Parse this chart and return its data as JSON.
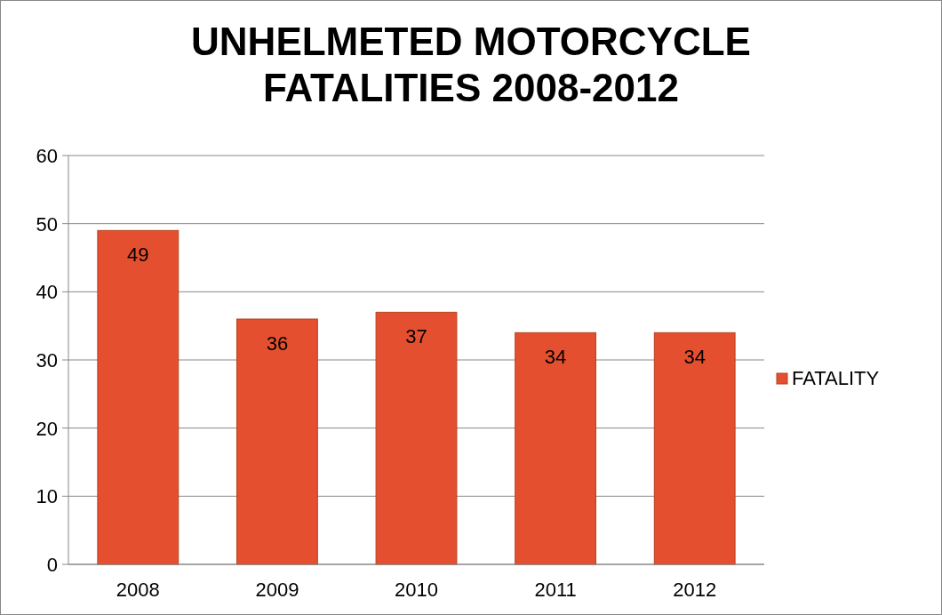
{
  "chart_data": {
    "type": "bar",
    "title": "UNHELMETED MOTORCYCLE FATALITIES 2008-2012",
    "categories": [
      "2008",
      "2009",
      "2010",
      "2011",
      "2012"
    ],
    "series": [
      {
        "name": "FATALITY",
        "color": "#e4502f",
        "values": [
          49,
          36,
          37,
          34,
          34
        ]
      }
    ],
    "ylim": [
      0,
      60
    ],
    "yticks": [
      0,
      10,
      20,
      30,
      40,
      50,
      60
    ],
    "grid": "y",
    "legend": "right",
    "data_labels": true
  }
}
